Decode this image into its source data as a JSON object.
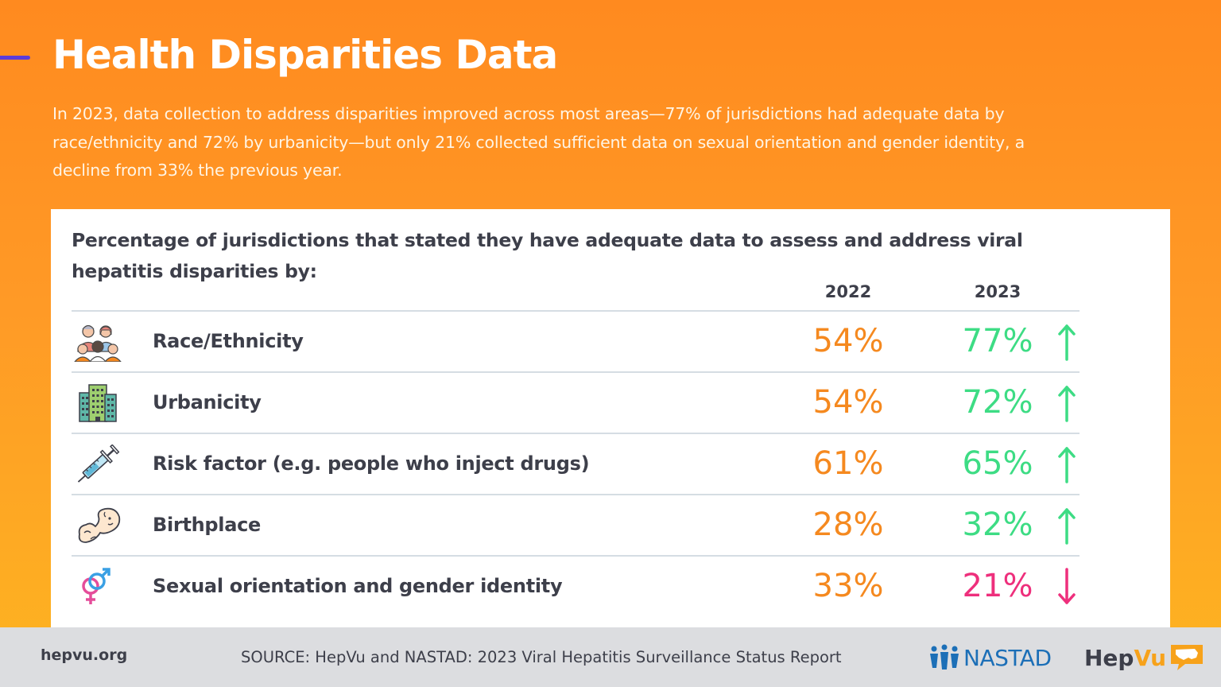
{
  "page": {
    "title": "Health Disparities Data",
    "intro": "In 2023, data collection to address disparities improved across most areas—77% of jurisdictions had adequate data by race/ethnicity and 72% by urbanicity—but only 21% collected sufficient data on sexual orientation and gender identity, a decline from 33% the previous year."
  },
  "table": {
    "heading": "Percentage of jurisdictions that stated they have adequate data to assess and address viral hepatitis disparities by:",
    "col_2022": "2022",
    "col_2023": "2023",
    "rows": [
      {
        "icon": "people-group-icon",
        "label": "Race/Ethnicity",
        "v2022": "54%",
        "v2023": "77%",
        "trend": "up"
      },
      {
        "icon": "buildings-icon",
        "label": "Urbanicity",
        "v2022": "54%",
        "v2023": "72%",
        "trend": "up"
      },
      {
        "icon": "syringe-icon",
        "label": "Risk factor (e.g. people who inject drugs)",
        "v2022": "61%",
        "v2023": "65%",
        "trend": "up"
      },
      {
        "icon": "baby-icon",
        "label": "Birthplace",
        "v2022": "28%",
        "v2023": "32%",
        "trend": "up"
      },
      {
        "icon": "gender-symbol-icon",
        "label": "Sexual orientation and gender identity",
        "v2022": "33%",
        "v2023": "21%",
        "trend": "down"
      }
    ]
  },
  "colors": {
    "v2022": "#f5891f",
    "up": "#3ddc84",
    "down": "#ee2f7c"
  },
  "footer": {
    "url": "hepvu.org",
    "source": "SOURCE: HepVu and NASTAD: 2023 Viral Hepatitis Surveillance Status Report",
    "nastad": "NASTAD",
    "hepvu_a": "Hep",
    "hepvu_b": "Vu"
  }
}
